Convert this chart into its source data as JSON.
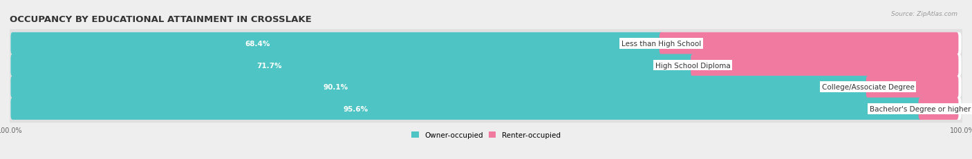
{
  "title": "OCCUPANCY BY EDUCATIONAL ATTAINMENT IN CROSSLAKE",
  "source": "Source: ZipAtlas.com",
  "categories": [
    "Less than High School",
    "High School Diploma",
    "College/Associate Degree",
    "Bachelor's Degree or higher"
  ],
  "owner_pct": [
    68.4,
    71.7,
    90.1,
    95.6
  ],
  "renter_pct": [
    31.6,
    28.3,
    9.9,
    4.4
  ],
  "owner_color": "#4ec4c4",
  "renter_color": "#f07aa0",
  "bar_height": 0.62,
  "bg_color": "#eeeeee",
  "bar_bg_color": "#ffffff",
  "title_fontsize": 9.5,
  "label_fontsize": 7.5,
  "pct_fontsize": 7.5,
  "axis_label_fontsize": 7,
  "legend_fontsize": 7.5,
  "source_fontsize": 6.5
}
